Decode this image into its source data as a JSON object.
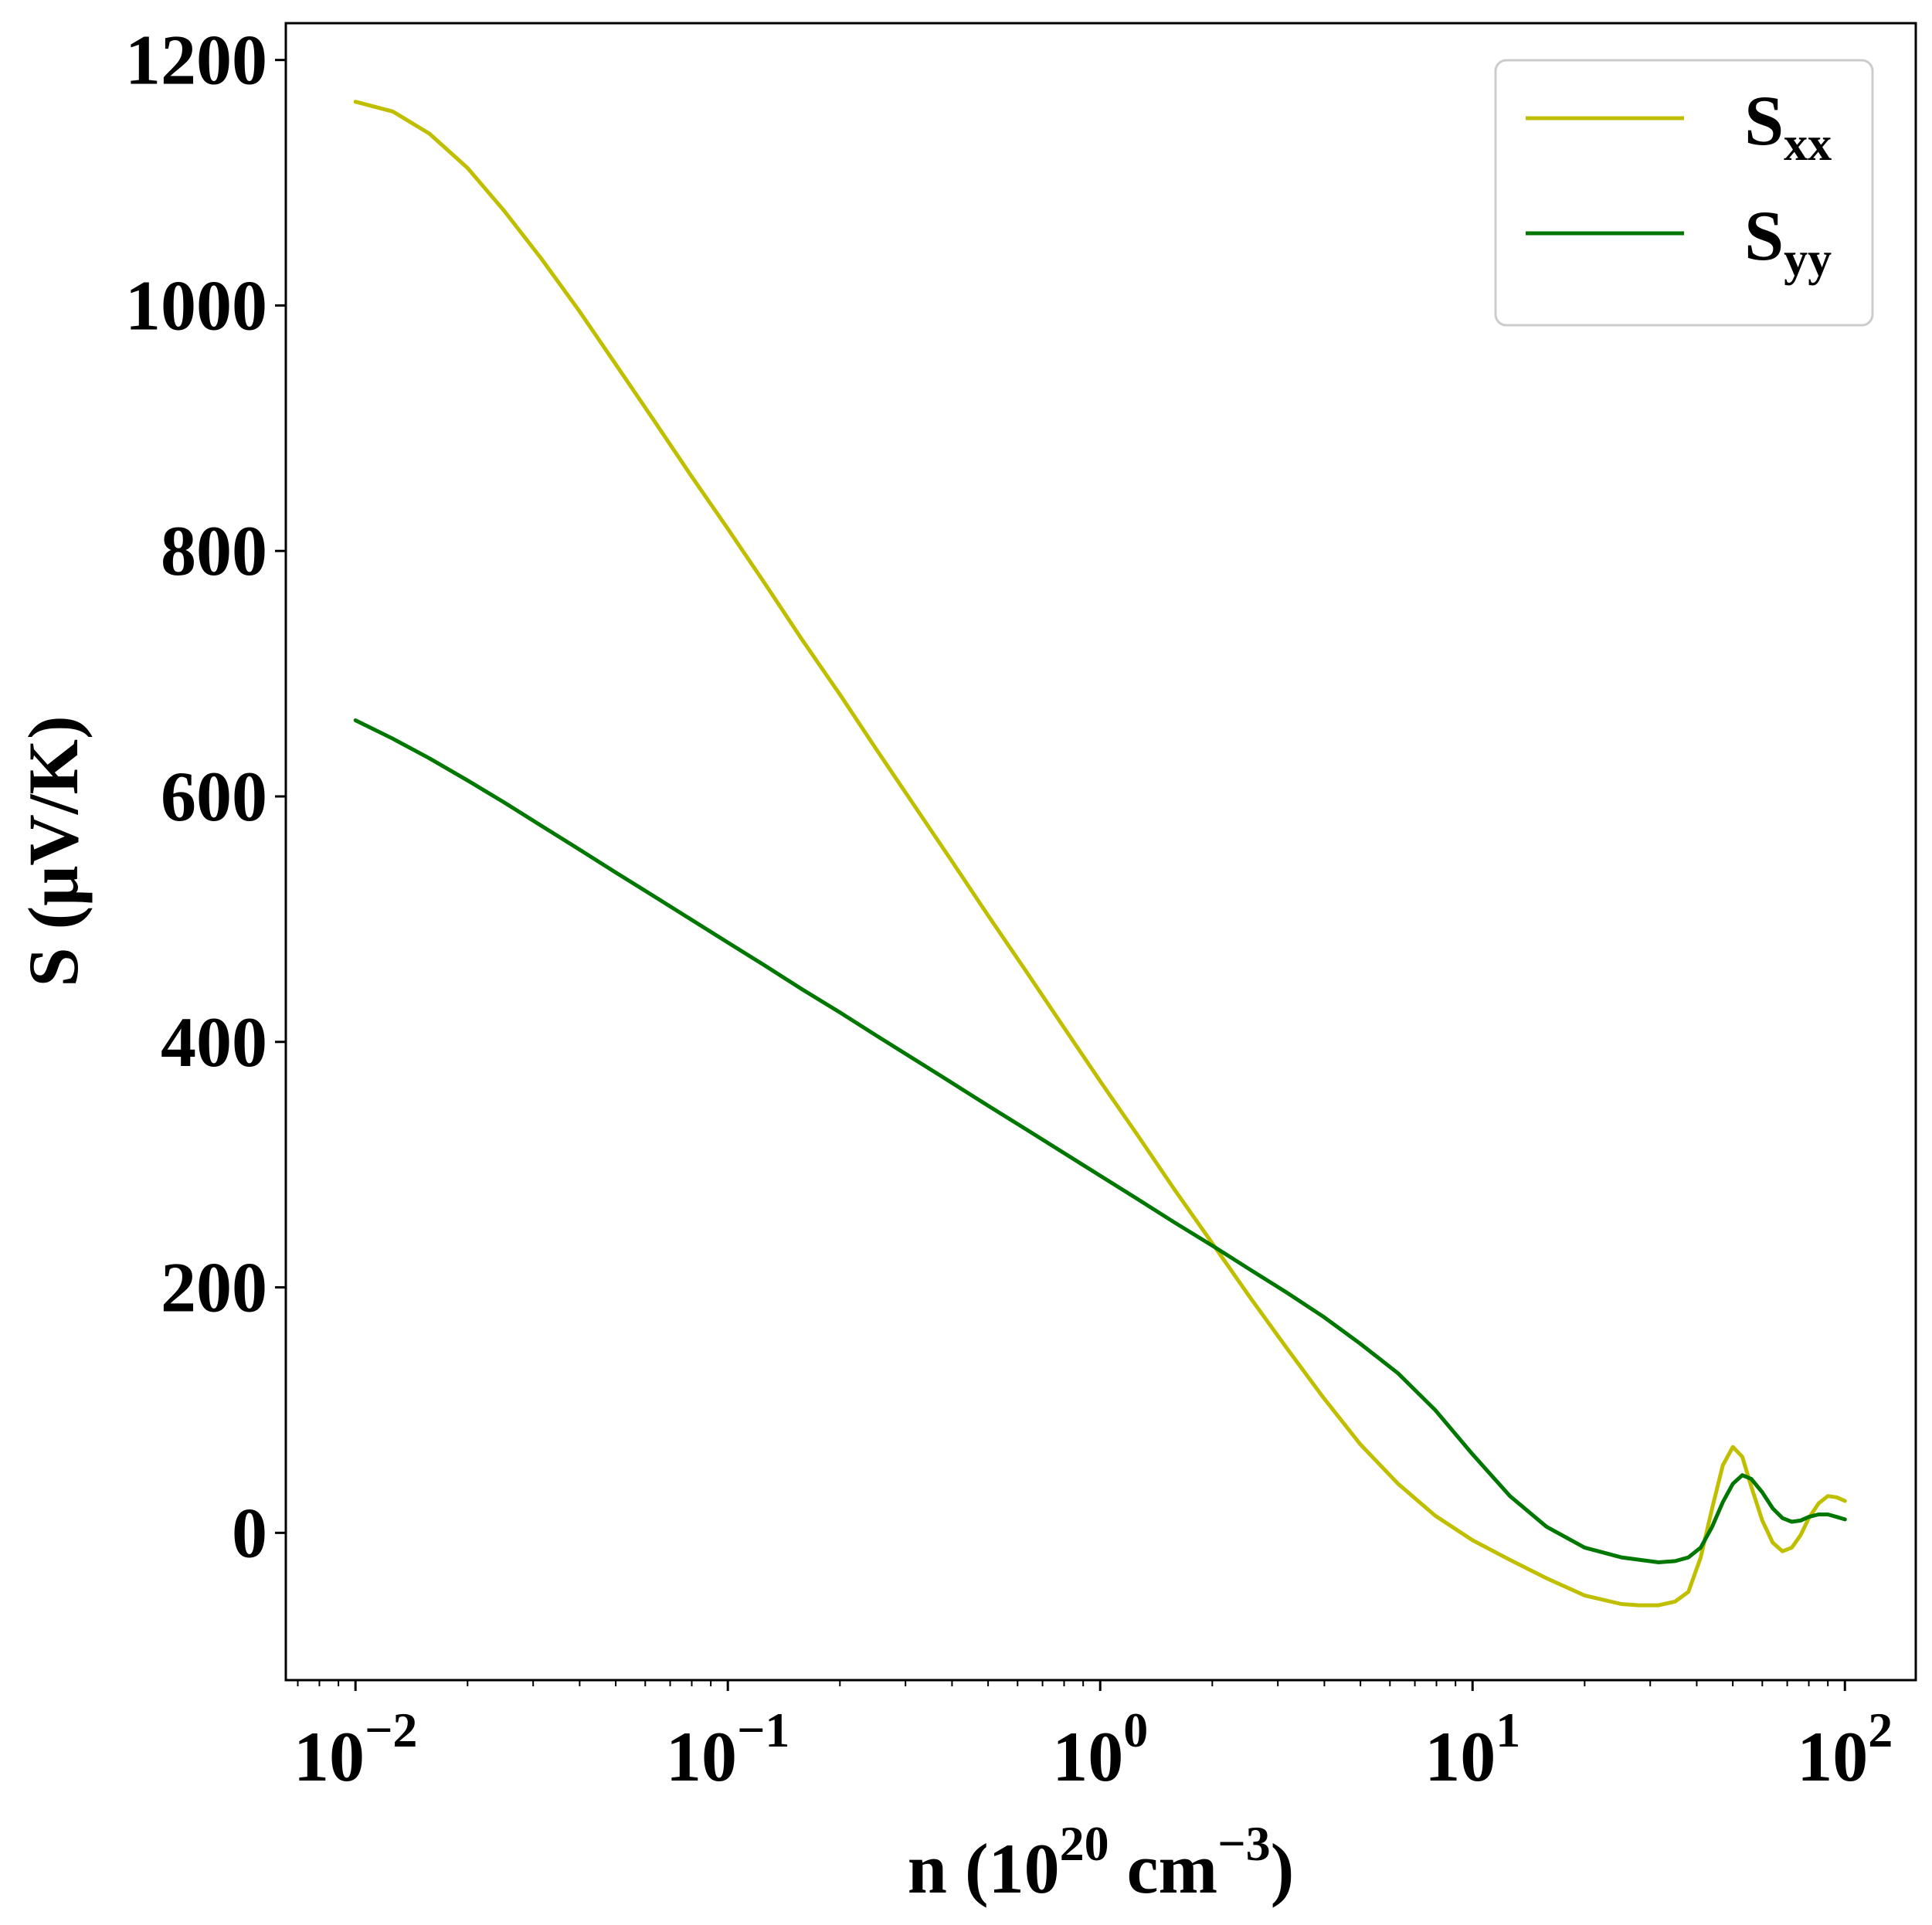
{
  "chart_data": {
    "type": "line",
    "title": "",
    "xlabel": {
      "main": "n (10",
      "sup1": "20",
      "mid": " cm",
      "sup2": "−3",
      "end": ")"
    },
    "ylabel": "S (μV/K)",
    "xscale": "log",
    "xlim": [
      0.0065,
      155
    ],
    "ylim": [
      -120,
      1230
    ],
    "grid": false,
    "legend_position": "top-right",
    "y_ticks": [
      0,
      200,
      400,
      600,
      800,
      1000,
      1200
    ],
    "x_ticks": [
      {
        "value": 0.01,
        "base": "10",
        "exp": "−2"
      },
      {
        "value": 0.1,
        "base": "10",
        "exp": "−1"
      },
      {
        "value": 1,
        "base": "10",
        "exp": "0"
      },
      {
        "value": 10,
        "base": "10",
        "exp": "1"
      },
      {
        "value": 100,
        "base": "10",
        "exp": "2"
      }
    ],
    "series": [
      {
        "name": "S",
        "subscript": "xx",
        "color": "#bfbf00",
        "points": [
          [
            0.01,
            1166
          ],
          [
            0.0126,
            1158
          ],
          [
            0.0158,
            1140
          ],
          [
            0.02,
            1112
          ],
          [
            0.0251,
            1077
          ],
          [
            0.0316,
            1038
          ],
          [
            0.0398,
            996
          ],
          [
            0.05,
            952
          ],
          [
            0.0631,
            907
          ],
          [
            0.0794,
            862
          ],
          [
            0.1,
            818
          ],
          [
            0.126,
            773
          ],
          [
            0.158,
            728
          ],
          [
            0.2,
            683
          ],
          [
            0.251,
            638
          ],
          [
            0.316,
            593
          ],
          [
            0.398,
            548
          ],
          [
            0.5,
            503
          ],
          [
            0.631,
            458
          ],
          [
            0.794,
            413
          ],
          [
            1,
            368
          ],
          [
            1.26,
            324
          ],
          [
            1.58,
            280
          ],
          [
            2,
            236
          ],
          [
            2.51,
            193
          ],
          [
            3.16,
            151
          ],
          [
            3.98,
            110
          ],
          [
            5,
            72
          ],
          [
            6.31,
            40
          ],
          [
            7.94,
            14
          ],
          [
            10,
            -6
          ],
          [
            12.6,
            -22
          ],
          [
            15.8,
            -37
          ],
          [
            20,
            -51
          ],
          [
            25.1,
            -58
          ],
          [
            28,
            -59
          ],
          [
            31.6,
            -59
          ],
          [
            35,
            -56
          ],
          [
            38,
            -48
          ],
          [
            41,
            -20
          ],
          [
            44,
            20
          ],
          [
            47,
            55
          ],
          [
            50,
            70
          ],
          [
            53,
            62
          ],
          [
            56,
            38
          ],
          [
            60,
            10
          ],
          [
            64,
            -8
          ],
          [
            68,
            -15
          ],
          [
            72,
            -12
          ],
          [
            76,
            -2
          ],
          [
            80,
            12
          ],
          [
            85,
            24
          ],
          [
            90,
            30
          ],
          [
            95,
            29
          ],
          [
            100,
            26
          ]
        ]
      },
      {
        "name": "S",
        "subscript": "yy",
        "color": "#007700",
        "points": [
          [
            0.01,
            662
          ],
          [
            0.0126,
            647
          ],
          [
            0.0158,
            631
          ],
          [
            0.02,
            613
          ],
          [
            0.0251,
            595
          ],
          [
            0.0316,
            576
          ],
          [
            0.0398,
            557
          ],
          [
            0.05,
            538
          ],
          [
            0.0631,
            519
          ],
          [
            0.0794,
            500
          ],
          [
            0.1,
            481
          ],
          [
            0.126,
            462
          ],
          [
            0.158,
            443
          ],
          [
            0.2,
            424
          ],
          [
            0.251,
            405
          ],
          [
            0.316,
            386
          ],
          [
            0.398,
            367
          ],
          [
            0.5,
            348
          ],
          [
            0.631,
            329
          ],
          [
            0.794,
            310
          ],
          [
            1,
            291
          ],
          [
            1.26,
            272
          ],
          [
            1.58,
            253
          ],
          [
            2,
            234
          ],
          [
            2.51,
            215
          ],
          [
            3.16,
            196
          ],
          [
            3.98,
            176
          ],
          [
            5,
            154
          ],
          [
            6.31,
            130
          ],
          [
            7.94,
            100
          ],
          [
            10,
            64
          ],
          [
            12.6,
            30
          ],
          [
            15.8,
            5
          ],
          [
            20,
            -12
          ],
          [
            25.1,
            -20
          ],
          [
            31.6,
            -24
          ],
          [
            35,
            -23
          ],
          [
            38,
            -20
          ],
          [
            41,
            -12
          ],
          [
            44,
            5
          ],
          [
            47,
            25
          ],
          [
            50,
            40
          ],
          [
            53,
            47
          ],
          [
            56,
            44
          ],
          [
            60,
            33
          ],
          [
            64,
            20
          ],
          [
            68,
            12
          ],
          [
            72,
            9
          ],
          [
            76,
            10
          ],
          [
            80,
            13
          ],
          [
            85,
            15
          ],
          [
            90,
            15
          ],
          [
            95,
            13
          ],
          [
            100,
            11
          ]
        ]
      }
    ]
  }
}
